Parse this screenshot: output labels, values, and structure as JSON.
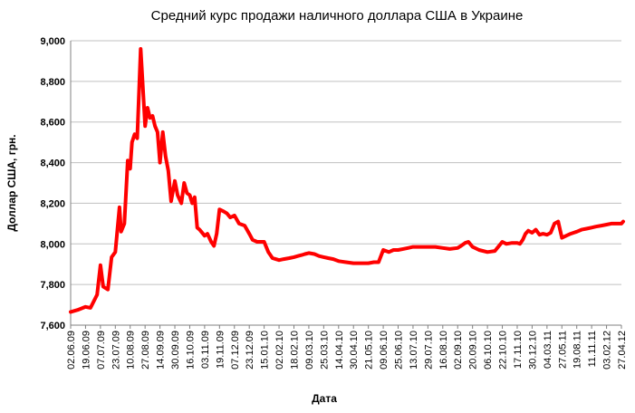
{
  "colors": {
    "line": "#ff0000",
    "grid": "#c0c0c0",
    "axis": "#808080",
    "background": "#ffffff"
  },
  "chart_data": {
    "type": "line",
    "title": "Средний курс продажи наличного доллара США в Украине",
    "xlabel": "Дата",
    "ylabel": "Доллар США, грн.",
    "ylim": [
      7.6,
      9.0
    ],
    "ytick_values": [
      7.6,
      7.8,
      8.0,
      8.2,
      8.4,
      8.6,
      8.8,
      9.0
    ],
    "ytick_labels": [
      "7,600",
      "7,800",
      "8,000",
      "8,200",
      "8,400",
      "8,600",
      "8,800",
      "9,000"
    ],
    "x_ticks": [
      "02.06.09",
      "19.06.09",
      "07.07.09",
      "23.07.09",
      "10.08.09",
      "27.08.09",
      "14.09.09",
      "30.09.09",
      "16.10.09",
      "03.11.09",
      "19.11.09",
      "07.12.09",
      "23.12.09",
      "15.01.10",
      "02.02.10",
      "18.02.10",
      "09.03.10",
      "25.03.10",
      "14.04.10",
      "30.04.10",
      "21.05.10",
      "09.06.10",
      "25.06.10",
      "13.07.10",
      "29.07.10",
      "16.08.10",
      "02.09.10",
      "20.09.10",
      "06.10.10",
      "22.10.10",
      "17.11.10",
      "30.12.10",
      "04.03.11",
      "27.05.11",
      "19.08.11",
      "11.11.11",
      "03.02.12",
      "27.04.12"
    ],
    "grid": true,
    "legend": "none",
    "series": [
      {
        "x": [
          "02.06.09",
          "10.06.09",
          "19.06.09",
          "25.06.09",
          "03.07.09",
          "07.07.09",
          "10.07.09",
          "15.07.09",
          "19.07.09",
          "23.07.09",
          "28.07.09",
          "30.07.09",
          "03.08.09",
          "07.08.09",
          "10.08.09",
          "12.08.09",
          "15.08.09",
          "18.08.09",
          "22.08.09",
          "27.08.09",
          "30.08.09",
          "02.09.09",
          "05.09.09",
          "08.09.09",
          "11.09.09",
          "14.09.09",
          "17.09.09",
          "20.09.09",
          "23.09.09",
          "26.09.09",
          "30.09.09",
          "03.10.09",
          "07.10.09",
          "10.10.09",
          "13.10.09",
          "16.10.09",
          "19.10.09",
          "22.10.09",
          "25.10.09",
          "28.10.09",
          "03.11.09",
          "06.11.09",
          "10.11.09",
          "13.11.09",
          "16.11.09",
          "19.11.09",
          "24.11.09",
          "28.11.09",
          "02.12.09",
          "07.12.09",
          "12.12.09",
          "18.12.09",
          "23.12.09",
          "28.12.09",
          "04.01.10",
          "09.01.10",
          "15.01.10",
          "20.01.10",
          "25.01.10",
          "29.01.10",
          "02.02.10",
          "07.02.10",
          "13.02.10",
          "18.02.10",
          "23.02.10",
          "28.02.10",
          "04.03.10",
          "09.03.10",
          "15.03.10",
          "20.03.10",
          "25.03.10",
          "31.03.10",
          "07.04.10",
          "14.04.10",
          "22.04.10",
          "30.04.10",
          "08.05.10",
          "15.05.10",
          "21.05.10",
          "28.05.10",
          "03.06.10",
          "09.06.10",
          "15.06.10",
          "20.06.10",
          "25.06.10",
          "01.07.10",
          "07.07.10",
          "13.07.10",
          "21.07.10",
          "29.07.10",
          "07.08.10",
          "16.08.10",
          "24.08.10",
          "02.09.10",
          "06.09.10",
          "11.09.10",
          "15.09.10",
          "20.09.10",
          "27.09.10",
          "06.10.10",
          "14.10.10",
          "22.10.10",
          "29.10.10",
          "08.11.10",
          "17.11.10",
          "25.11.10",
          "03.12.10",
          "11.12.10",
          "19.12.10",
          "30.12.10",
          "15.01.11",
          "31.01.11",
          "15.02.11",
          "04.03.11",
          "25.03.11",
          "15.04.11",
          "06.05.11",
          "27.05.11",
          "20.06.11",
          "15.07.11",
          "19.08.11",
          "15.09.11",
          "13.10.11",
          "11.11.11",
          "05.12.11",
          "05.01.12",
          "03.02.12",
          "01.03.12",
          "30.03.12",
          "27.04.12",
          "30.04.12"
        ],
        "y": [
          7.665,
          7.675,
          7.69,
          7.685,
          7.75,
          7.895,
          7.79,
          7.775,
          7.935,
          7.96,
          8.18,
          8.06,
          8.1,
          8.41,
          8.37,
          8.5,
          8.54,
          8.52,
          8.96,
          8.58,
          8.67,
          8.62,
          8.63,
          8.58,
          8.55,
          8.4,
          8.55,
          8.43,
          8.36,
          8.21,
          8.31,
          8.24,
          8.2,
          8.3,
          8.25,
          8.24,
          8.2,
          8.23,
          8.08,
          8.07,
          8.04,
          8.05,
          8.01,
          7.99,
          8.05,
          8.17,
          8.16,
          8.15,
          8.13,
          8.14,
          8.1,
          8.09,
          8.05,
          8.02,
          8.01,
          8.01,
          8.01,
          7.96,
          7.93,
          7.925,
          7.92,
          7.925,
          7.93,
          7.935,
          7.94,
          7.945,
          7.95,
          7.955,
          7.95,
          7.94,
          7.935,
          7.93,
          7.925,
          7.915,
          7.91,
          7.905,
          7.905,
          7.905,
          7.905,
          7.91,
          7.91,
          7.97,
          7.96,
          7.97,
          7.97,
          7.975,
          7.98,
          7.985,
          7.985,
          7.985,
          7.985,
          7.98,
          7.975,
          7.98,
          7.99,
          8.005,
          8.01,
          7.985,
          7.97,
          7.96,
          7.965,
          8.01,
          8.0,
          8.005,
          8.005,
          8.0,
          8.02,
          8.05,
          8.065,
          8.055,
          8.07,
          8.045,
          8.05,
          8.045,
          8.055,
          8.1,
          8.11,
          8.03,
          8.04,
          8.05,
          8.06,
          8.07,
          8.075,
          8.08,
          8.085,
          8.09,
          8.095,
          8.1,
          8.1,
          8.1,
          8.11
        ]
      }
    ]
  }
}
